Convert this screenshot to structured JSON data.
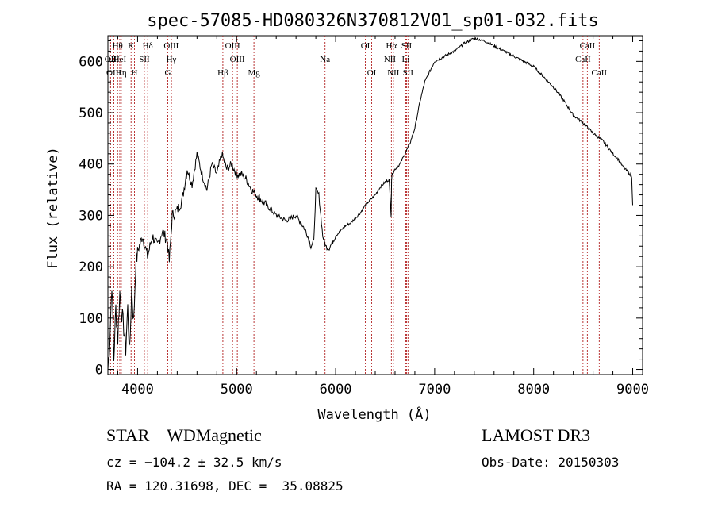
{
  "chart_data": {
    "type": "line",
    "title": "spec-57085-HD080326N370812V01_sp01-032.fits",
    "xlabel": "Wavelength (Å)",
    "ylabel": "Flux (relative)",
    "xlim": [
      3700,
      9100
    ],
    "ylim": [
      -10,
      650
    ],
    "xticks": [
      4000,
      5000,
      6000,
      7000,
      8000,
      9000
    ],
    "yticks": [
      0,
      100,
      200,
      300,
      400,
      500,
      600
    ],
    "grid": false,
    "series": [
      {
        "name": "flux",
        "x": [
          3700,
          3720,
          3740,
          3760,
          3780,
          3800,
          3820,
          3840,
          3860,
          3880,
          3900,
          3920,
          3940,
          3960,
          3980,
          4000,
          4050,
          4100,
          4150,
          4200,
          4250,
          4300,
          4320,
          4350,
          4400,
          4450,
          4500,
          4550,
          4600,
          4650,
          4700,
          4750,
          4800,
          4850,
          4900,
          4950,
          5000,
          5050,
          5100,
          5150,
          5200,
          5300,
          5400,
          5500,
          5600,
          5700,
          5750,
          5780,
          5800,
          5830,
          5850,
          5870,
          5900,
          5930,
          5960,
          6000,
          6050,
          6100,
          6150,
          6200,
          6250,
          6300,
          6350,
          6400,
          6450,
          6500,
          6540,
          6560,
          6565,
          6570,
          6600,
          6650,
          6700,
          6750,
          6800,
          6850,
          6900,
          6950,
          7000,
          7100,
          7200,
          7300,
          7400,
          7500,
          7550,
          7600,
          7700,
          7800,
          7900,
          8000,
          8100,
          8200,
          8300,
          8400,
          8500,
          8600,
          8700,
          8800,
          8850,
          8900,
          8950,
          8990,
          9000
        ],
        "y": [
          0,
          60,
          170,
          20,
          120,
          60,
          150,
          110,
          80,
          40,
          120,
          30,
          160,
          90,
          200,
          230,
          260,
          220,
          260,
          240,
          270,
          250,
          210,
          300,
          310,
          330,
          390,
          360,
          420,
          380,
          350,
          400,
          380,
          420,
          390,
          400,
          380,
          380,
          370,
          350,
          340,
          320,
          300,
          290,
          300,
          270,
          240,
          250,
          350,
          340,
          300,
          260,
          240,
          235,
          245,
          260,
          270,
          280,
          285,
          295,
          305,
          320,
          330,
          340,
          355,
          365,
          370,
          300,
          370,
          380,
          390,
          400,
          420,
          440,
          470,
          520,
          560,
          580,
          600,
          610,
          620,
          635,
          645,
          640,
          635,
          630,
          620,
          610,
          600,
          590,
          570,
          550,
          525,
          495,
          480,
          460,
          445,
          420,
          410,
          395,
          385,
          375,
          320
        ]
      }
    ],
    "lines": [
      {
        "name": "Hθ",
        "x": 3798,
        "row": 1
      },
      {
        "name": "OII",
        "x": 3727,
        "row": 2
      },
      {
        "name": "OIII",
        "x": 3760,
        "row": 3
      },
      {
        "name": "HeI",
        "x": 3820,
        "row": 2
      },
      {
        "name": "Hη",
        "x": 3835,
        "row": 3
      },
      {
        "name": "K",
        "x": 3934,
        "row": 1
      },
      {
        "name": "H",
        "x": 3968,
        "row": 3
      },
      {
        "name": "SII",
        "x": 4068,
        "row": 2
      },
      {
        "name": "Hδ",
        "x": 4102,
        "row": 1
      },
      {
        "name": "OIII",
        "x": 4340,
        "row": 1
      },
      {
        "name": "Hγ",
        "x": 4341,
        "row": 2
      },
      {
        "name": "G",
        "x": 4305,
        "row": 3
      },
      {
        "name": "OIII",
        "x": 4959,
        "row": 1
      },
      {
        "name": "OIII",
        "x": 5007,
        "row": 2
      },
      {
        "name": "Hβ",
        "x": 4861,
        "row": 3
      },
      {
        "name": "Mg",
        "x": 5175,
        "row": 3
      },
      {
        "name": "Na",
        "x": 5893,
        "row": 2
      },
      {
        "name": "OI",
        "x": 6300,
        "row": 1
      },
      {
        "name": "OI",
        "x": 6364,
        "row": 3
      },
      {
        "name": "Hα",
        "x": 6563,
        "row": 1
      },
      {
        "name": "NII",
        "x": 6548,
        "row": 2
      },
      {
        "name": "NII",
        "x": 6583,
        "row": 3
      },
      {
        "name": "SII",
        "x": 6716,
        "row": 1
      },
      {
        "name": "Li",
        "x": 6708,
        "row": 2
      },
      {
        "name": "SII",
        "x": 6731,
        "row": 3
      },
      {
        "name": "CaII",
        "x": 8542,
        "row": 1
      },
      {
        "name": "CaII",
        "x": 8498,
        "row": 2
      },
      {
        "name": "CaII",
        "x": 8662,
        "row": 3
      }
    ]
  },
  "info": {
    "class": "STAR    WDMagnetic",
    "survey": "LAMOST DR3",
    "cz": "cz = −104.2 ± 32.5 km/s",
    "obs_date": "Obs-Date: 20150303",
    "radec": "RA = 120.31698, DEC =  35.08825"
  }
}
